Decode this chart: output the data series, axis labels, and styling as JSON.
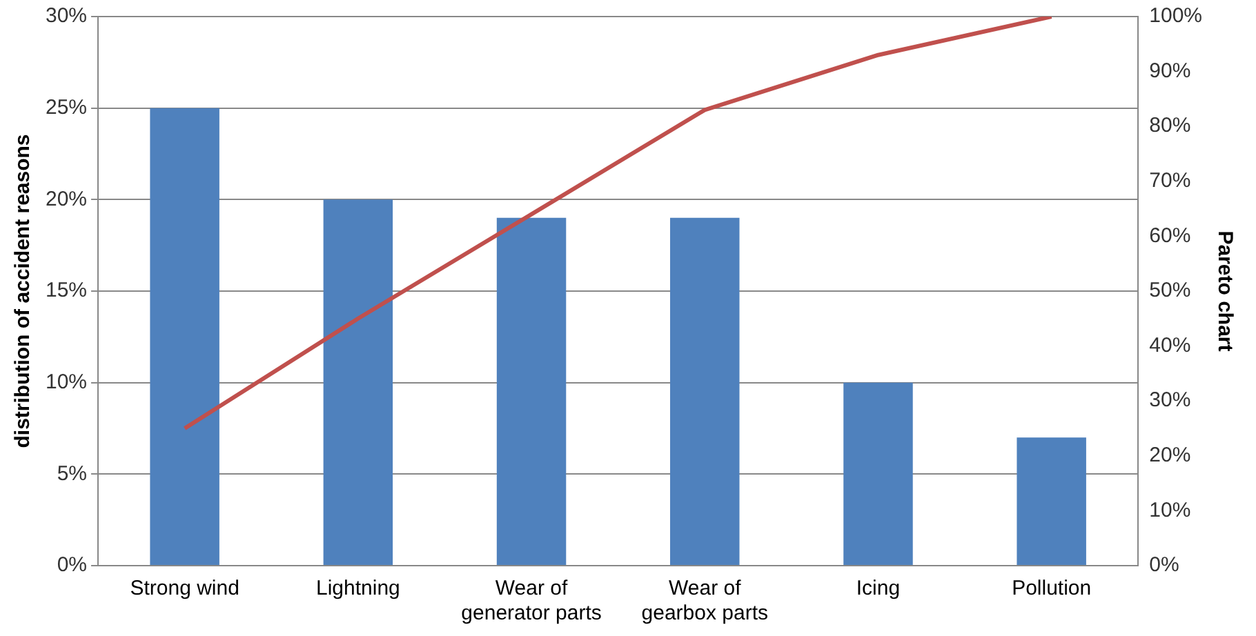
{
  "chart_data": {
    "type": "bar",
    "ylabel": "distribution of accident reasons",
    "y2label": "Pareto chart",
    "categories": [
      "Strong wind",
      "Lightning",
      "Wear of\ngenerator parts",
      "Wear of\ngearbox parts",
      "Icing",
      "Pollution"
    ],
    "series": [
      {
        "color": "#4f81bd",
        "values": [
          25,
          20,
          19,
          19,
          10,
          7
        ]
      },
      {
        "type": "line",
        "axis": "y2",
        "color": "#c0504d",
        "values": [
          25,
          45,
          64,
          83,
          93,
          100
        ]
      }
    ],
    "ylim": [
      0,
      30
    ],
    "yticks": [
      {
        "value": 0,
        "label": "0%"
      },
      {
        "value": 5,
        "label": "5%"
      },
      {
        "value": 10,
        "label": "10%"
      },
      {
        "value": 15,
        "label": "15%"
      },
      {
        "value": 20,
        "label": "20%"
      },
      {
        "value": 25,
        "label": "25%"
      },
      {
        "value": 30,
        "label": "30%"
      }
    ],
    "y2lim": [
      0,
      100
    ],
    "y2ticks": [
      {
        "value": 0,
        "label": "0%"
      },
      {
        "value": 10,
        "label": "10%"
      },
      {
        "value": 20,
        "label": "20%"
      },
      {
        "value": 30,
        "label": "30%"
      },
      {
        "value": 40,
        "label": "40%"
      },
      {
        "value": 50,
        "label": "50%"
      },
      {
        "value": 60,
        "label": "60%"
      },
      {
        "value": 70,
        "label": "70%"
      },
      {
        "value": 80,
        "label": "80%"
      },
      {
        "value": 90,
        "label": "90%"
      },
      {
        "value": 100,
        "label": "100%"
      }
    ],
    "grid": "y",
    "legend": false,
    "marker": "none",
    "line_style": "solid"
  }
}
